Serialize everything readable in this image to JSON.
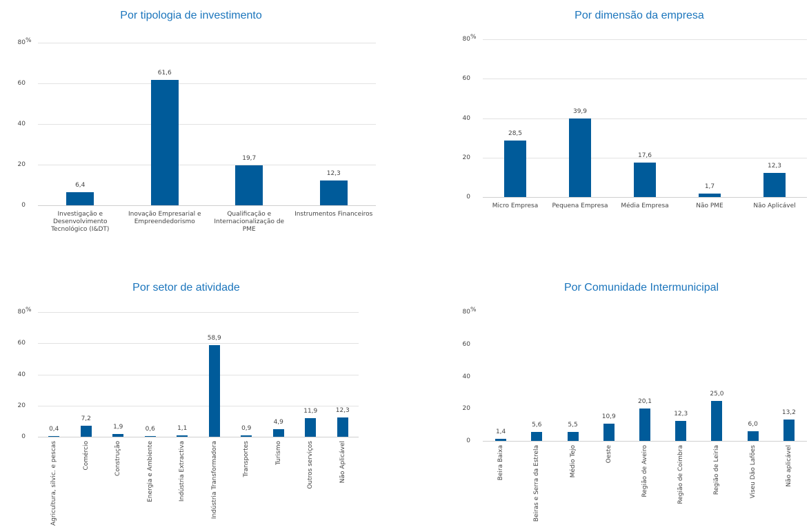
{
  "chart_data": [
    {
      "type": "bar",
      "title": "Por tipologia de investimento",
      "ylabel": "%",
      "categories": [
        "Investigação e Desenvolvimento Tecnológico (I&DT)",
        "Inovação Empresarial e Empreendedorismo",
        "Qualificação e Internacionalização de PME",
        "Instrumentos Financeiros"
      ],
      "values": [
        6.4,
        61.6,
        19.7,
        12.3
      ],
      "value_labels": [
        "6,4",
        "61,6",
        "19,7",
        "12,3"
      ],
      "ylim": [
        0,
        80
      ],
      "yticks": [
        0,
        20,
        40,
        60,
        80
      ],
      "grid": true,
      "color": "#005b9a"
    },
    {
      "type": "bar",
      "title": "Por dimensão da empresa",
      "ylabel": "%",
      "categories": [
        "Micro Empresa",
        "Pequena Empresa",
        "Média Empresa",
        "Não PME",
        "Não Aplicável"
      ],
      "values": [
        28.5,
        39.9,
        17.6,
        1.7,
        12.3
      ],
      "value_labels": [
        "28,5",
        "39,9",
        "17,6",
        "1,7",
        "12,3"
      ],
      "ylim": [
        0,
        80
      ],
      "yticks": [
        0,
        20,
        40,
        60,
        80
      ],
      "grid": true,
      "color": "#005b9a"
    },
    {
      "type": "bar",
      "title": "Por setor de atividade",
      "ylabel": "%",
      "categories": [
        "Agricultura, silvic. e pescas",
        "Comércio",
        "Construção",
        "Energia e Ambiente",
        "Indústria Extractiva",
        "Indústria Transformadora",
        "Transportes",
        "Turismo",
        "Outros serviços",
        "Não Aplicável"
      ],
      "values": [
        0.4,
        7.2,
        1.9,
        0.6,
        1.1,
        58.9,
        0.9,
        4.9,
        11.9,
        12.3
      ],
      "value_labels": [
        "0,4",
        "7,2",
        "1,9",
        "0,6",
        "1,1",
        "58,9",
        "0,9",
        "4,9",
        "11,9",
        "12,3"
      ],
      "ylim": [
        0,
        80
      ],
      "yticks": [
        0,
        20,
        40,
        60,
        80
      ],
      "grid": true,
      "color": "#005b9a",
      "rotated_labels": true
    },
    {
      "type": "bar",
      "title": "Por Comunidade  Intermunicipal",
      "ylabel": "%",
      "categories": [
        "Beira Baixa",
        "Beiras e Serra da Estrela",
        "Médio Tejo",
        "Oeste",
        "Região de Aveiro",
        "Região de Coimbra",
        "Região de Leiria",
        "Viseu Dão Lafões",
        "Não aplicável"
      ],
      "values": [
        1.4,
        5.6,
        5.5,
        10.9,
        20.1,
        12.3,
        25.0,
        6.0,
        13.2
      ],
      "value_labels": [
        "1,4",
        "5,6",
        "5,5",
        "10,9",
        "20,1",
        "12,3",
        "25,0",
        "6,0",
        "13,2"
      ],
      "ylim": [
        0,
        80
      ],
      "yticks": [
        0,
        20,
        40,
        60,
        80
      ],
      "grid": false,
      "color": "#005b9a",
      "rotated_labels": true
    }
  ]
}
